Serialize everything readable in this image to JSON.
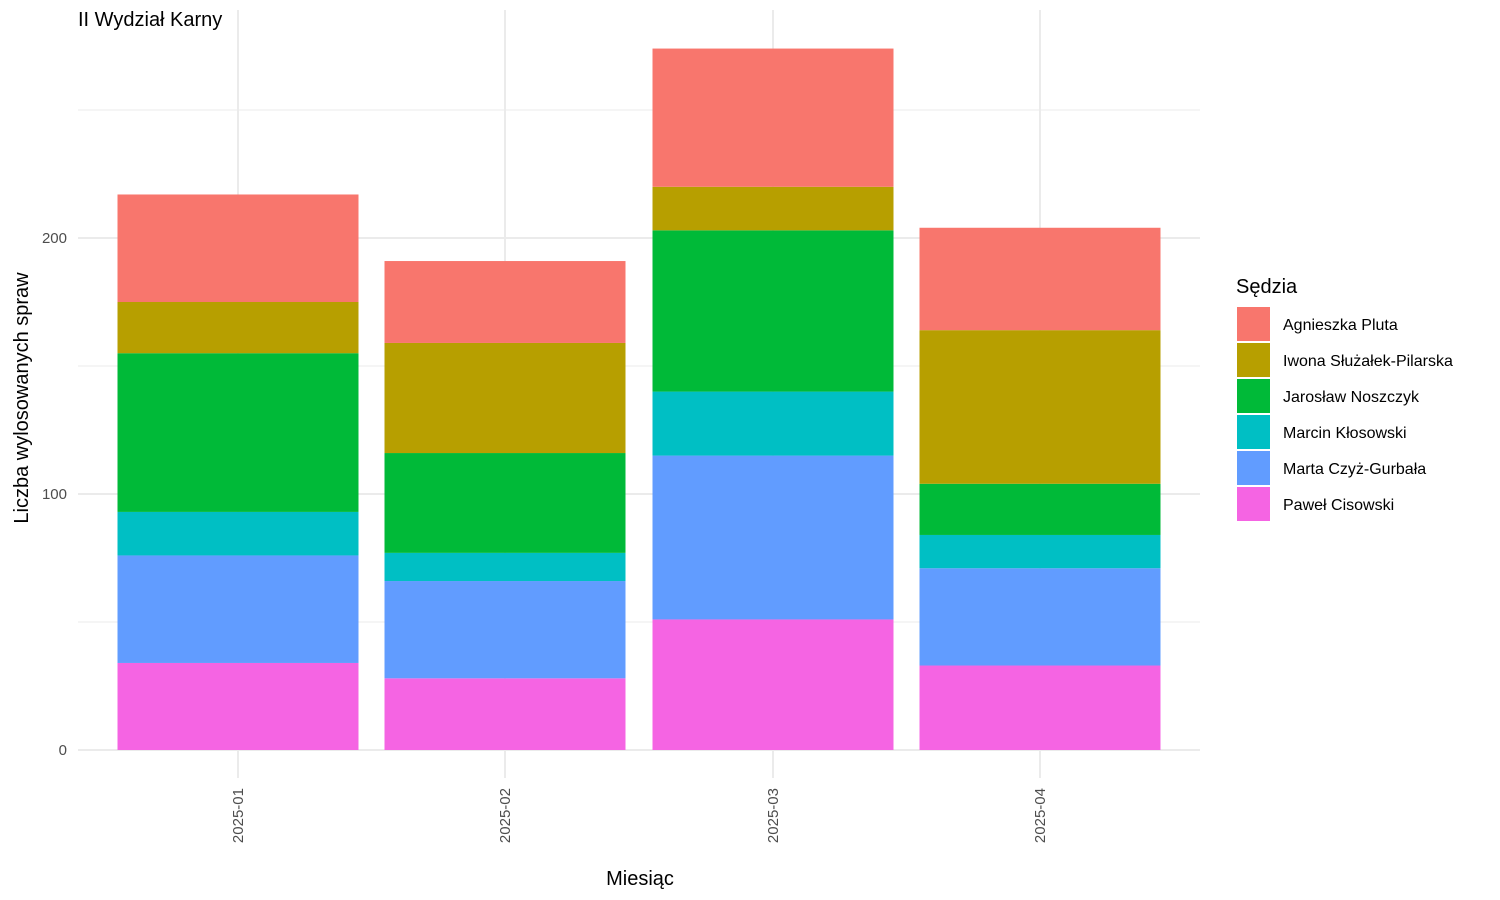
{
  "chart_data": {
    "type": "bar",
    "stacked": true,
    "title": "II Wydział Karny",
    "xlabel": "Miesiąc",
    "ylabel": "Liczba wylosowanych spraw",
    "categories": [
      "2025-01",
      "2025-02",
      "2025-03",
      "2025-04"
    ],
    "ylim": [
      0,
      290
    ],
    "yticks": [
      0,
      100,
      200
    ],
    "ytick_labels": [
      "0",
      "100",
      "200"
    ],
    "grid": true,
    "legend": {
      "title": "Sędzia",
      "position": "right"
    },
    "series": [
      {
        "name": "Agnieszka Pluta",
        "color": "#F8766D",
        "values": [
          42,
          32,
          54,
          40
        ]
      },
      {
        "name": "Iwona Służałek-Pilarska",
        "color": "#B79F00",
        "values": [
          20,
          43,
          17,
          60
        ]
      },
      {
        "name": "Jarosław Noszczyk",
        "color": "#00BA38",
        "values": [
          62,
          39,
          63,
          20
        ]
      },
      {
        "name": "Marcin Kłosowski",
        "color": "#00BFC4",
        "values": [
          17,
          11,
          25,
          13
        ]
      },
      {
        "name": "Marta Czyż-Gurbała",
        "color": "#619CFF",
        "values": [
          42,
          38,
          64,
          38
        ]
      },
      {
        "name": "Paweł Cisowski",
        "color": "#F564E3",
        "values": [
          34,
          28,
          51,
          33
        ]
      }
    ]
  }
}
